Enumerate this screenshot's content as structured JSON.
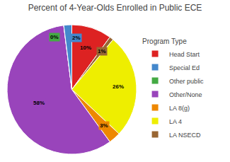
{
  "chart_data": {
    "type": "pie",
    "title": "Percent of 4-Year-Olds Enrolled in Public ECE",
    "categories": [
      "Head Start",
      "LA NSECD",
      "LA 4",
      "LA 8(g)",
      "Other/None",
      "Other public",
      "Special Ed"
    ],
    "values": [
      10,
      1,
      26,
      3,
      58,
      0,
      2
    ],
    "value_labels": [
      "10%",
      "1%",
      "26%",
      "3%",
      "58%",
      "0%",
      "2%"
    ],
    "colors": [
      "#dd2222",
      "#996633",
      "#eeee00",
      "#ee8800",
      "#9944bb",
      "#44aa44",
      "#4488cc"
    ],
    "data_labels": true,
    "legend": "right",
    "legend_title": "Program Type",
    "legend_entries": [
      {
        "name": "Head Start",
        "color": "#dd2222"
      },
      {
        "name": "Special Ed",
        "color": "#4488cc"
      },
      {
        "name": "Other public",
        "color": "#44aa44"
      },
      {
        "name": "Other/None",
        "color": "#9944bb"
      },
      {
        "name": "LA 8(g)",
        "color": "#ee8800"
      },
      {
        "name": "LA 4",
        "color": "#eeee00"
      },
      {
        "name": "LA NSECD",
        "color": "#996633"
      }
    ]
  }
}
